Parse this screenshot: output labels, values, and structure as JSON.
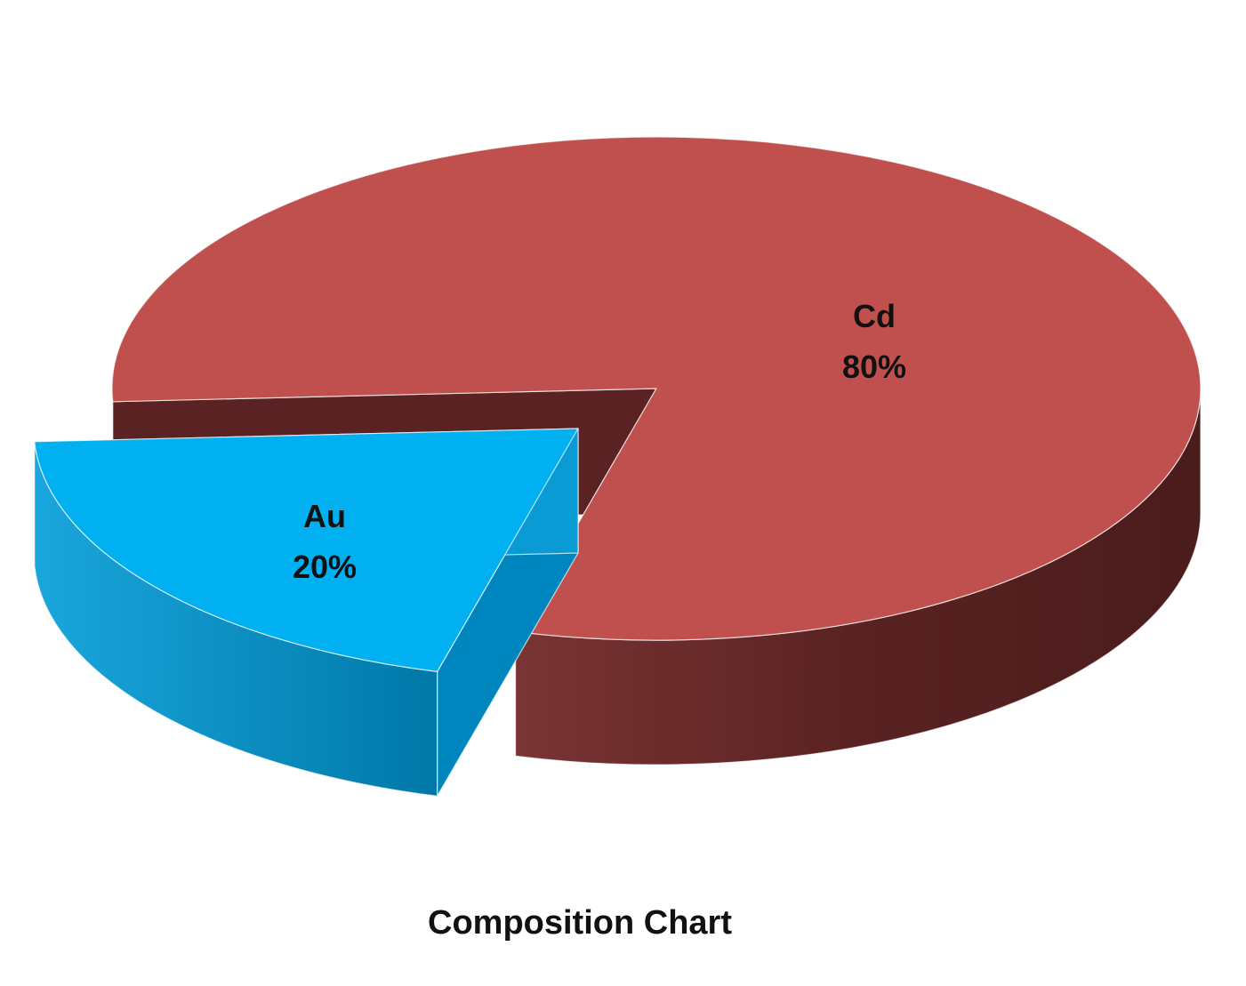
{
  "chart_data": {
    "type": "pie",
    "style": "3d-exploded",
    "title": "Composition Chart",
    "slices": [
      {
        "label": "Cd",
        "value": 80,
        "value_label": "80%",
        "color": "#C0504D",
        "side_color": "#5A2222",
        "exploded": false
      },
      {
        "label": "Au",
        "value": 20,
        "value_label": "20%",
        "color": "#00B0F0",
        "side_color": "#0086BE",
        "exploded": true
      }
    ],
    "legend": "none"
  }
}
